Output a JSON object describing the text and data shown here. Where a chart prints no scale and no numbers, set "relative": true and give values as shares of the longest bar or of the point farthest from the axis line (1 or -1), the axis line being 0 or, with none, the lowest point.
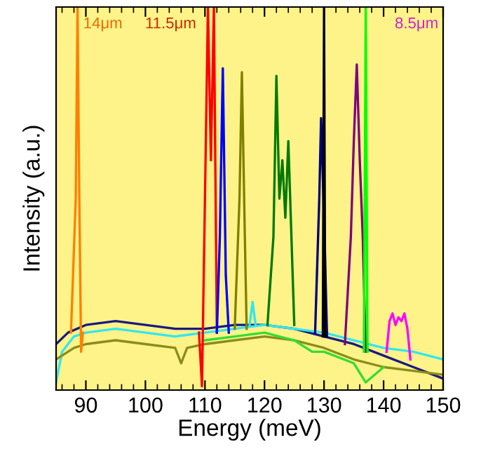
{
  "chart_data": {
    "type": "line",
    "relative": true,
    "xlabel": "Energy (meV)",
    "ylabel": "Intensity (a.u.)",
    "xlim": [
      85,
      150
    ],
    "xticks": [
      90,
      100,
      110,
      120,
      130,
      140,
      150
    ],
    "grid": false,
    "legend": false,
    "tick_labels": "x",
    "annotations": [
      "14μm",
      "11.5μm",
      "8.5μm"
    ],
    "series": [
      {
        "color": "#1a1a80",
        "x": [
          85,
          87,
          90,
          95,
          100,
          105,
          110,
          115,
          120,
          125,
          130,
          135,
          140,
          145,
          150
        ],
        "values": [
          0.12,
          0.15,
          0.17,
          0.18,
          0.17,
          0.16,
          0.16,
          0.17,
          0.17,
          0.16,
          0.14,
          0.12,
          0.09,
          0.06,
          0.03
        ]
      },
      {
        "color": "#33e6f0",
        "x": [
          85,
          86,
          88,
          90,
          95,
          100,
          105,
          110,
          115,
          120,
          125,
          130,
          135,
          140,
          145,
          150
        ],
        "values": [
          0.02,
          0.1,
          0.14,
          0.15,
          0.16,
          0.15,
          0.14,
          0.15,
          0.16,
          0.17,
          0.16,
          0.15,
          0.13,
          0.11,
          0.1,
          0.08
        ]
      },
      {
        "color": "#8c8c1a",
        "x": [
          85,
          88,
          90,
          95,
          100,
          105,
          106,
          107,
          110,
          115,
          120,
          125,
          130,
          135,
          140,
          145,
          150
        ],
        "values": [
          0.08,
          0.11,
          0.12,
          0.13,
          0.12,
          0.11,
          0.07,
          0.11,
          0.12,
          0.13,
          0.14,
          0.13,
          0.11,
          0.08,
          0.06,
          0.05,
          0.04
        ]
      },
      {
        "color": "#33dd33",
        "x": [
          110,
          115,
          120,
          125,
          128,
          130,
          135,
          137,
          140
        ],
        "values": [
          0.13,
          0.14,
          0.15,
          0.13,
          0.1,
          0.1,
          0.07,
          0.02,
          0.06
        ]
      },
      {
        "color": "#ff8000",
        "x": [
          87.5,
          88.3,
          88.6,
          88.9,
          89.2,
          89.5
        ],
        "values": [
          0.15,
          0.5,
          1,
          0.5,
          0.1,
          0.15
        ]
      },
      {
        "color": "#ff0000",
        "x": [
          109,
          109.5,
          110,
          110.5,
          111,
          111.5,
          112
        ],
        "values": [
          0.15,
          0.01,
          0.5,
          1,
          0.6,
          1,
          0.15
        ]
      },
      {
        "color": "#0000ff",
        "x": [
          112,
          112.5,
          113,
          113.5,
          114
        ],
        "values": [
          0.15,
          0.4,
          0.84,
          0.3,
          0.15
        ]
      },
      {
        "color": "#808000",
        "x": [
          115,
          115.8,
          116.2,
          116.7,
          117
        ],
        "values": [
          0.16,
          0.5,
          0.83,
          0.4,
          0.16
        ]
      },
      {
        "color": "#33e6f0",
        "x": [
          117.5,
          118,
          118.5
        ],
        "values": [
          0.17,
          0.23,
          0.17
        ]
      },
      {
        "color": "#007a00",
        "x": [
          120.5,
          121.5,
          122,
          122.5,
          123,
          123.5,
          124,
          125
        ],
        "values": [
          0.17,
          0.4,
          0.82,
          0.5,
          0.6,
          0.45,
          0.65,
          0.17
        ]
      },
      {
        "color": "#000080",
        "x": [
          128.5,
          129.2,
          129.5,
          130,
          130.5
        ],
        "values": [
          0.15,
          0.5,
          0.71,
          0.45,
          0.14
        ]
      },
      {
        "color": "#000000",
        "x": [
          129.8,
          130,
          130.2
        ],
        "values": [
          0.14,
          1,
          0.14
        ]
      },
      {
        "color": "#800080",
        "x": [
          133.5,
          134.5,
          135,
          135.5,
          136,
          136.5,
          137
        ],
        "values": [
          0.12,
          0.4,
          0.65,
          0.85,
          0.6,
          0.4,
          0.1
        ]
      },
      {
        "color": "#00ff00",
        "x": [
          136.7,
          137,
          137.3
        ],
        "values": [
          0.1,
          1,
          0.1
        ]
      },
      {
        "color": "#ff00ff",
        "x": [
          140.5,
          141,
          141.5,
          142,
          142.5,
          143,
          143.5,
          144,
          144.5
        ],
        "values": [
          0.1,
          0.18,
          0.2,
          0.17,
          0.19,
          0.18,
          0.2,
          0.16,
          0.08
        ]
      }
    ]
  }
}
